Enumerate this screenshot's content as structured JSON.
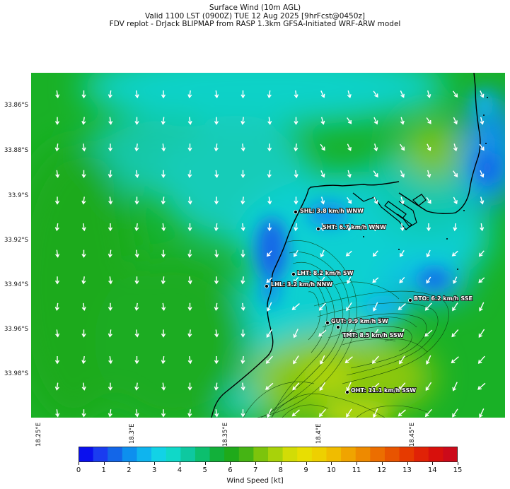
{
  "title": {
    "line1": "Surface Wind (10m AGL)",
    "line2": "Valid 1100 LST (0900Z) TUE 12 Aug 2025 [9hrFcst@0450z]",
    "line3": "FDV replot - DrJack BLIPMAP from RASP 1.3km GFSA-Initiated WRF-ARW model"
  },
  "axes": {
    "lat_labels": [
      "33.86°S",
      "33.88°S",
      "33.9°S",
      "33.92°S",
      "33.94°S",
      "33.96°S",
      "33.98°S"
    ],
    "lon_labels": [
      "18.25°E",
      "18.3°E",
      "18.35°E",
      "18.4°E",
      "18.45°E"
    ]
  },
  "stations": [
    {
      "code": "SHL",
      "label": "SHL: 3.8 km/h WNW",
      "speed_kmh": 3.8,
      "dir": "WNW"
    },
    {
      "code": "SHT",
      "label": "SHT: 6.7 km/h WNW",
      "speed_kmh": 6.7,
      "dir": "WNW"
    },
    {
      "code": "LHT",
      "label": "LHT: 8.2 km/h SW",
      "speed_kmh": 8.2,
      "dir": "SW"
    },
    {
      "code": "LHL",
      "label": "LHL: 3.2 km/h NNW",
      "speed_kmh": 3.2,
      "dir": "NNW"
    },
    {
      "code": "BTO",
      "label": "BTO: 6.2 km/h SSE",
      "speed_kmh": 6.2,
      "dir": "SSE"
    },
    {
      "code": "GUT",
      "label": "GUT: 9.9 km/h SW",
      "speed_kmh": 9.9,
      "dir": "SW"
    },
    {
      "code": "TMT",
      "label": "TMT: 8.5 km/h SSW",
      "speed_kmh": 8.5,
      "dir": "SSW"
    },
    {
      "code": "OHT",
      "label": "OHT: 11.1 km/h SSW",
      "speed_kmh": 11.1,
      "dir": "SSW"
    }
  ],
  "colorbar": {
    "label": "Wind Speed [kt]",
    "ticks": [
      "0",
      "1",
      "2",
      "3",
      "4",
      "5",
      "6",
      "7",
      "8",
      "9",
      "10",
      "11",
      "12",
      "13",
      "14",
      "15"
    ],
    "range": [
      0,
      15
    ],
    "colors": [
      "#0a10ee",
      "#1a3cf0",
      "#1366e8",
      "#0d8fee",
      "#0fb4ee",
      "#12d2e6",
      "#10d8c8",
      "#0ec8a0",
      "#0cbf6e",
      "#12b03a",
      "#1faa1a",
      "#45b414",
      "#7cc40c",
      "#a8d20a",
      "#d2dc06",
      "#e8de02",
      "#eed000",
      "#f0bc00",
      "#f0a400",
      "#ee8a00",
      "#ec6e00",
      "#e85400",
      "#e63a00",
      "#e02206",
      "#d8100c",
      "#cc0a1a"
    ],
    "colors_note": ""
  },
  "map": {
    "background_dominant": "#19b126",
    "coast_color": "#000000",
    "arrow_color": "#ffffff"
  }
}
